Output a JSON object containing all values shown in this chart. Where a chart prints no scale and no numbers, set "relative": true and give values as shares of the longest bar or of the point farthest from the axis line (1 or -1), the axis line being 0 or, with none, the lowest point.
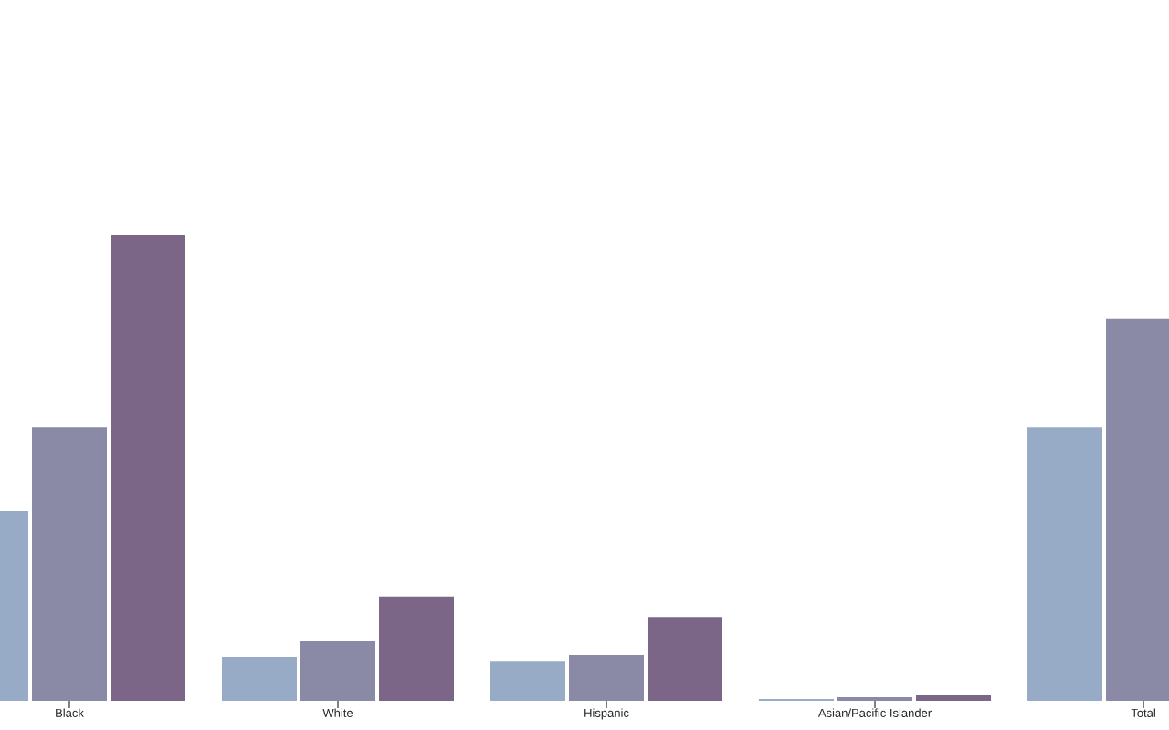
{
  "chart_data": {
    "type": "bar",
    "relative": true,
    "categories": [
      "Black",
      "White",
      "Hispanic",
      "Asian/Pacific Islander",
      "Total"
    ],
    "series": [
      {
        "color": "#97abc6",
        "values": [
          0.408,
          0.094,
          0.086,
          0.004,
          0.588
        ]
      },
      {
        "color": "#8a89a6",
        "values": [
          0.588,
          0.129,
          0.098,
          0.008,
          0.82
        ]
      },
      {
        "color": "#7b6688",
        "values": [
          1.0,
          0.224,
          0.18,
          0.012,
          null
        ]
      }
    ]
  }
}
